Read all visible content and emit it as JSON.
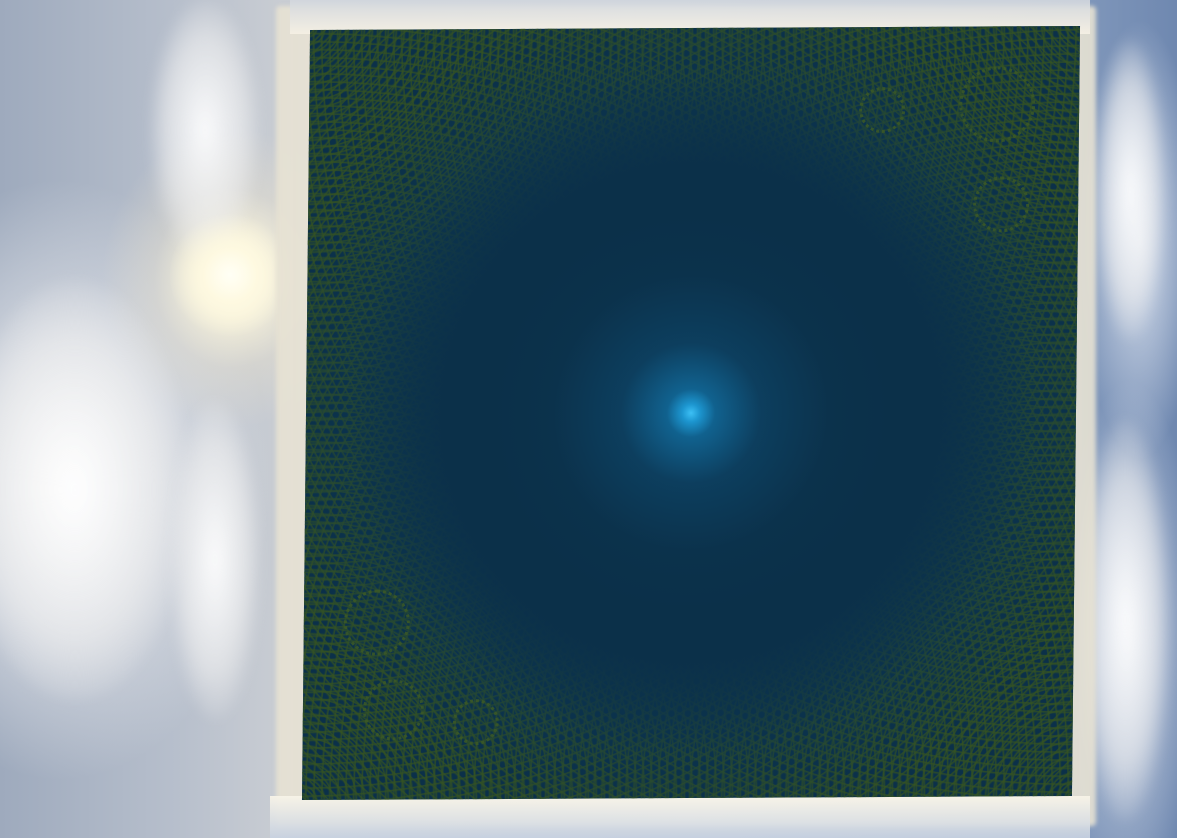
{
  "scene": {
    "type": "3d-water-renderer",
    "elements": [
      "skybox",
      "water-plane",
      "sun"
    ],
    "colors": {
      "water_deep": "#0b3049",
      "water_highlight": "#2fb3ec",
      "ripple": "#34522a",
      "sky": "#aebdd2",
      "sun": "#fffcea"
    }
  }
}
